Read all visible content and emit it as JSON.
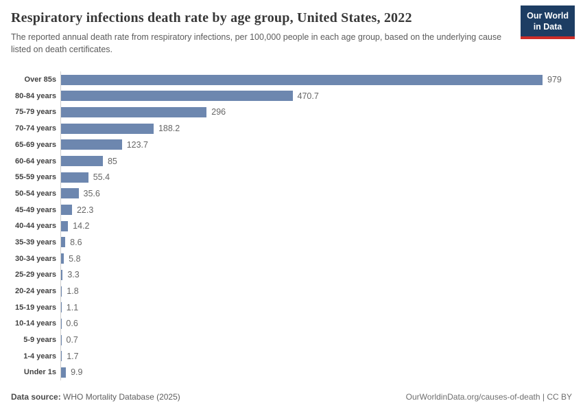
{
  "header": {
    "title": "Respiratory infections death rate by age group, United States, 2022",
    "subtitle": "The reported annual death rate from respiratory infections, per 100,000 people in each age group, based on the underlying cause listed on death certificates.",
    "logo": {
      "line1": "Our World",
      "line2": "in Data",
      "bg_color": "#1d3d63",
      "stripe_color": "#cd2d28"
    }
  },
  "chart_data": {
    "type": "bar",
    "orientation": "horizontal",
    "title": "Respiratory infections death rate by age group, United States, 2022",
    "xlabel": "",
    "ylabel": "",
    "xlim": [
      0,
      1000
    ],
    "grid": false,
    "legend": "none",
    "bar_color": "#6d87af",
    "categories": [
      "Over 85s",
      "80-84 years",
      "75-79 years",
      "70-74 years",
      "65-69 years",
      "60-64 years",
      "55-59 years",
      "50-54 years",
      "45-49 years",
      "40-44 years",
      "35-39 years",
      "30-34 years",
      "25-29 years",
      "20-24 years",
      "15-19 years",
      "10-14 years",
      "5-9 years",
      "1-4 years",
      "Under 1s"
    ],
    "values": [
      979,
      470.7,
      296,
      188.2,
      123.7,
      85,
      55.4,
      35.6,
      22.3,
      14.2,
      8.6,
      5.8,
      3.3,
      1.8,
      1.1,
      0.6,
      0.7,
      1.7,
      9.9
    ],
    "value_labels": [
      "979",
      "470.7",
      "296",
      "188.2",
      "123.7",
      "85",
      "55.4",
      "35.6",
      "22.3",
      "14.2",
      "8.6",
      "5.8",
      "3.3",
      "1.8",
      "1.1",
      "0.6",
      "0.7",
      "1.7",
      "9.9"
    ]
  },
  "footer": {
    "source_label": "Data source:",
    "source_text": " WHO Mortality Database (2025)",
    "right_text": "OurWorldinData.org/causes-of-death | CC BY"
  }
}
